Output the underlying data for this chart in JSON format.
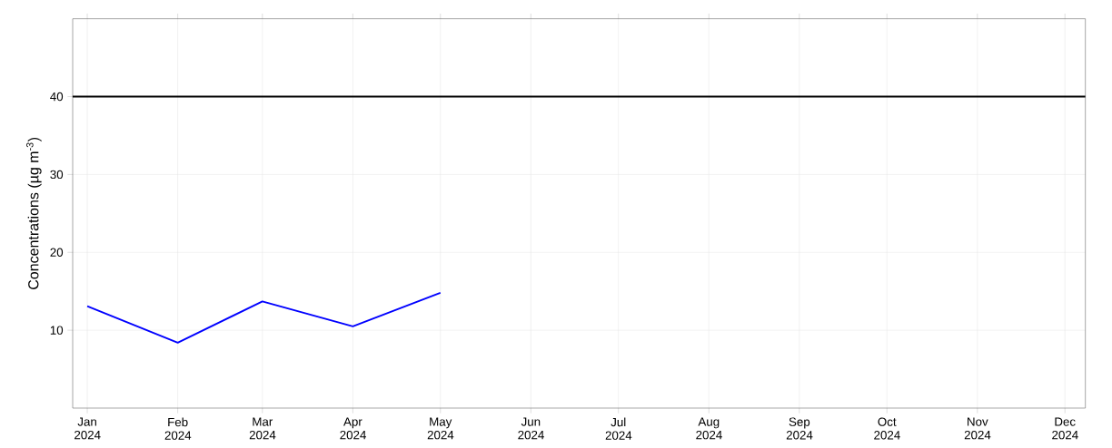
{
  "chart_data": {
    "type": "line",
    "ylabel": "Concentrations (µg m$^{-3}$)",
    "x": [
      "2024-01-01",
      "2024-02-01",
      "2024-03-01",
      "2024-04-01",
      "2024-05-01"
    ],
    "series": [
      {
        "color": "#0000ff",
        "values": [
          13.1,
          8.4,
          13.7,
          10.5,
          14.8
        ]
      }
    ],
    "xlim": [
      "2023-12-27",
      "2024-12-08"
    ],
    "xticks": [
      {
        "value": "2024-01-01",
        "label": "Jan 2024"
      },
      {
        "value": "2024-02-01",
        "label": "Feb 2024"
      },
      {
        "value": "2024-03-01",
        "label": "Mar 2024"
      },
      {
        "value": "2024-04-01",
        "label": "Apr 2024"
      },
      {
        "value": "2024-05-01",
        "label": "May 2024"
      },
      {
        "value": "2024-06-01",
        "label": "Jun 2024"
      },
      {
        "value": "2024-07-01",
        "label": "Jul 2024"
      },
      {
        "value": "2024-08-01",
        "label": "Aug 2024"
      },
      {
        "value": "2024-09-01",
        "label": "Sep 2024"
      },
      {
        "value": "2024-10-01",
        "label": "Oct 2024"
      },
      {
        "value": "2024-11-01",
        "label": "Nov 2024"
      },
      {
        "value": "2024-12-01",
        "label": "Dec 2024"
      }
    ],
    "ylim": [
      0,
      50
    ],
    "yticks": [
      10,
      20,
      30,
      40
    ],
    "ref_lines": [
      {
        "axis": "y",
        "value": 40,
        "color": "#000000"
      }
    ],
    "grid": true,
    "marker": "none",
    "line_style": "solid"
  }
}
